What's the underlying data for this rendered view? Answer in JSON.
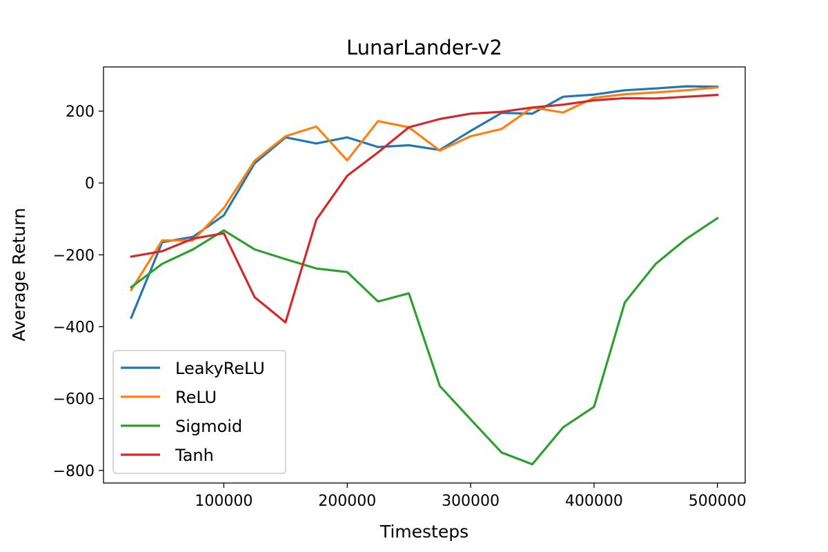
{
  "chart_data": {
    "type": "line",
    "title": "LunarLander-v2",
    "xlabel": "Timesteps",
    "ylabel": "Average Return",
    "xlim": [
      2500,
      522500
    ],
    "ylim": [
      -835,
      323
    ],
    "xticks": [
      100000,
      200000,
      300000,
      400000,
      500000
    ],
    "yticks": [
      -800,
      -600,
      -400,
      -200,
      0,
      200
    ],
    "grid": false,
    "legend_position": "lower-left",
    "x": [
      25000,
      50000,
      75000,
      100000,
      125000,
      150000,
      175000,
      200000,
      225000,
      250000,
      275000,
      300000,
      325000,
      350000,
      375000,
      400000,
      425000,
      450000,
      475000,
      500000
    ],
    "series": [
      {
        "name": "LeakyReLU",
        "color": "#1f77b4",
        "values": [
          -375,
          -165,
          -150,
          -90,
          55,
          127,
          110,
          127,
          100,
          105,
          92,
          145,
          195,
          193,
          240,
          246,
          258,
          263,
          269,
          268
        ]
      },
      {
        "name": "ReLU",
        "color": "#ff7f0e",
        "values": [
          -298,
          -160,
          -160,
          -70,
          62,
          130,
          157,
          63,
          172,
          155,
          90,
          130,
          150,
          210,
          196,
          237,
          247,
          252,
          258,
          266
        ]
      },
      {
        "name": "Sigmoid",
        "color": "#2ca02c",
        "values": [
          -290,
          -225,
          -185,
          -132,
          -185,
          -212,
          -238,
          -248,
          -330,
          -307,
          -565,
          -658,
          -750,
          -783,
          -680,
          -623,
          -332,
          -225,
          -155,
          -98
        ]
      },
      {
        "name": "Tanh",
        "color": "#d62728",
        "values": [
          -205,
          -190,
          -155,
          -140,
          -318,
          -388,
          -102,
          20,
          85,
          155,
          178,
          193,
          198,
          210,
          218,
          230,
          236,
          235,
          240,
          245
        ]
      }
    ]
  }
}
